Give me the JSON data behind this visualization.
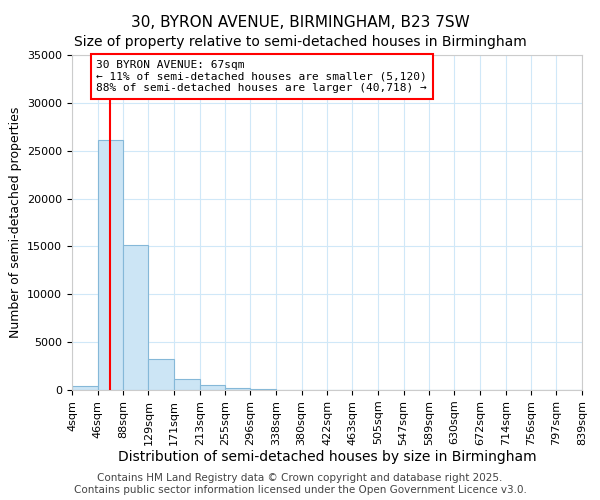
{
  "title": "30, BYRON AVENUE, BIRMINGHAM, B23 7SW",
  "subtitle": "Size of property relative to semi-detached houses in Birmingham",
  "xlabel": "Distribution of semi-detached houses by size in Birmingham",
  "ylabel": "Number of semi-detached properties",
  "property_label": "30 BYRON AVENUE: 67sqm",
  "pct_smaller": 11,
  "pct_larger": 88,
  "n_smaller": 5120,
  "n_larger": 40718,
  "bin_edges": [
    4,
    46,
    88,
    129,
    171,
    213,
    255,
    296,
    338,
    380,
    422,
    463,
    505,
    547,
    589,
    630,
    672,
    714,
    756,
    797,
    839
  ],
  "bin_counts": [
    400,
    26100,
    15200,
    3200,
    1100,
    500,
    200,
    100,
    0,
    0,
    0,
    0,
    0,
    0,
    0,
    0,
    0,
    0,
    0,
    0
  ],
  "bar_color": "#cce5f5",
  "bar_edge_color": "#85b8d8",
  "bar_alpha": 1.0,
  "vline_color": "red",
  "vline_x": 67,
  "annotation_box_color": "red",
  "ylim": [
    0,
    35000
  ],
  "yticks": [
    0,
    5000,
    10000,
    15000,
    20000,
    25000,
    30000,
    35000
  ],
  "background_color": "#ffffff",
  "grid_color": "#d0e8f8",
  "footer": "Contains HM Land Registry data © Crown copyright and database right 2025.\nContains public sector information licensed under the Open Government Licence v3.0.",
  "title_fontsize": 11,
  "subtitle_fontsize": 10,
  "xlabel_fontsize": 10,
  "ylabel_fontsize": 9,
  "tick_fontsize": 8,
  "footer_fontsize": 7.5
}
